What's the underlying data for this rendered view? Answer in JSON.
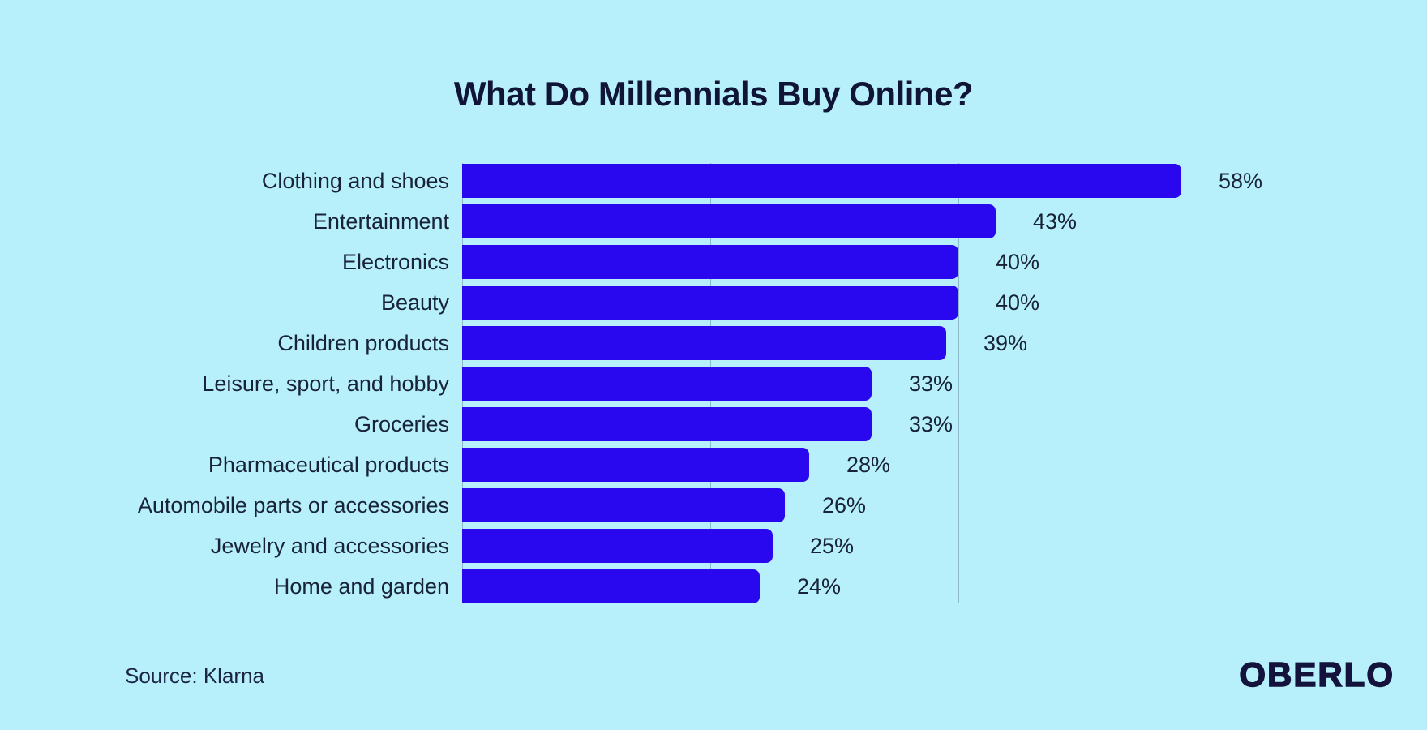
{
  "page": {
    "background_color": "#b7f0fb"
  },
  "title": "What Do Millennials Buy Online?",
  "source_note": "Source: Klarna",
  "brand": "OBERLO",
  "colors": {
    "bar": "#2a08ef",
    "title_text": "#101436",
    "label_text": "#182338",
    "gridline": "rgba(90,120,145,0.45)"
  },
  "chart_data": {
    "type": "bar",
    "orientation": "horizontal",
    "title": "What Do Millennials Buy Online?",
    "categories": [
      "Clothing and shoes",
      "Entertainment",
      "Electronics",
      "Beauty",
      "Children products",
      "Leisure, sport, and hobby",
      "Groceries",
      "Pharmaceutical products",
      "Automobile parts or accessories",
      "Jewelry and accessories",
      "Home and garden"
    ],
    "values": [
      58,
      43,
      40,
      40,
      39,
      33,
      33,
      28,
      26,
      25,
      24
    ],
    "value_suffix": "%",
    "xlabel": "",
    "ylabel": "",
    "xlim": [
      0,
      60
    ],
    "gridline_percents": [
      0,
      20,
      40
    ],
    "grid": "vertical-only",
    "legend": "none",
    "value_labels": "outside-end",
    "source": "Source: Klarna",
    "brand": "OBERLO"
  }
}
